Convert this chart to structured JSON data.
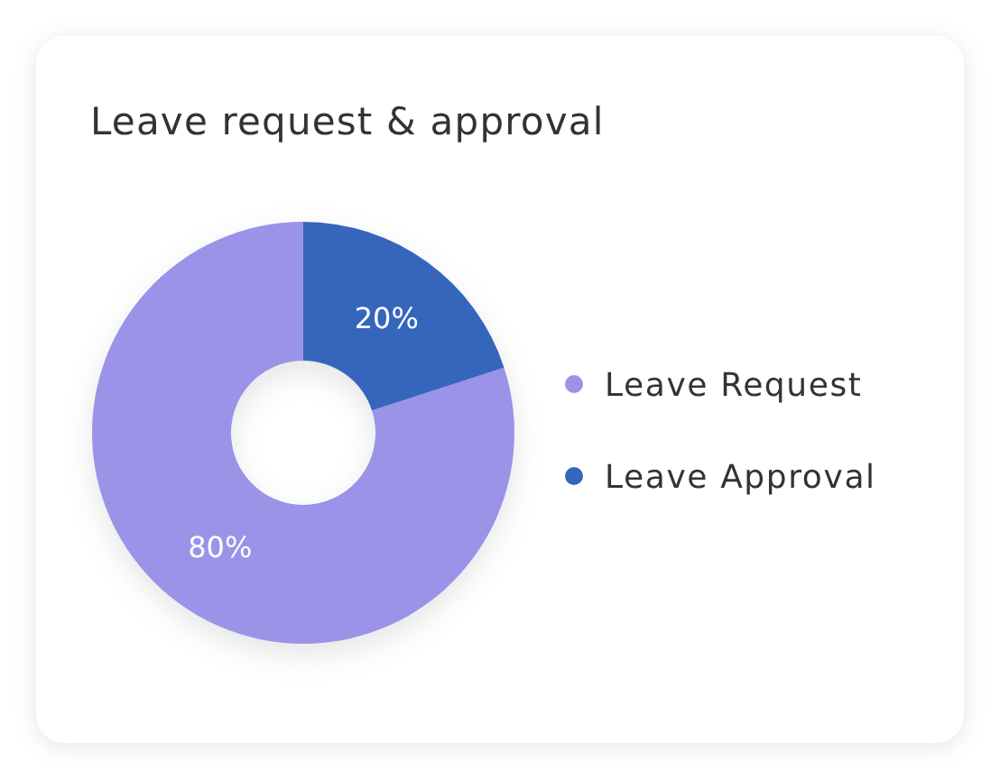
{
  "chart_data": {
    "type": "donut",
    "title": "Leave request & approval",
    "categories": [
      "Leave Request",
      "Leave Approval"
    ],
    "values": [
      80,
      20
    ],
    "colors": [
      "#9b93e8",
      "#3566bc"
    ],
    "value_labels": [
      "80%",
      "20%"
    ],
    "legend": "right"
  }
}
